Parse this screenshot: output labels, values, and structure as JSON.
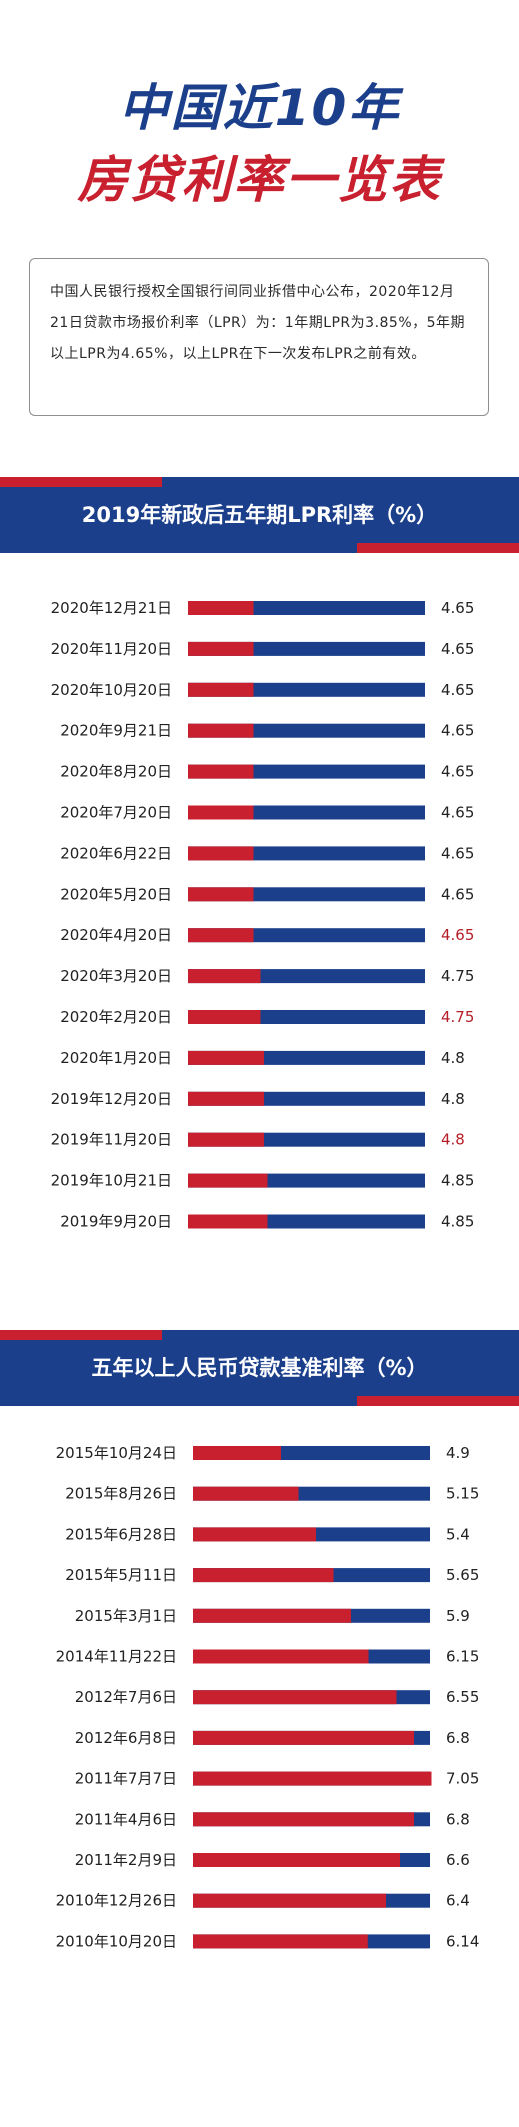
{
  "header": {
    "title_line1": "中国近10年",
    "title_line2": "房贷利率一览表"
  },
  "intro": {
    "text": "中国人民银行授权全国银行间同业拆借中心公布，2020年12月21日贷款市场报价利率（LPR）为：1年期LPR为3.85%，5年期以上LPR为4.65%，以上LPR在下一次发布LPR之前有效。"
  },
  "colors": {
    "blue": "#1b3f8b",
    "red": "#c8202e",
    "highlight_text": "#b51e27"
  },
  "chart_data": [
    {
      "type": "bar",
      "title": "2019年新政后五年期LPR利率（%）",
      "orientation": "horizontal",
      "categories": [
        "2020年12月21日",
        "2020年11月20日",
        "2020年10月20日",
        "2020年9月21日",
        "2020年8月20日",
        "2020年7月20日",
        "2020年6月22日",
        "2020年5月20日",
        "2020年4月20日",
        "2020年3月20日",
        "2020年2月20日",
        "2020年1月20日",
        "2019年12月20日",
        "2019年11月20日",
        "2019年10月21日",
        "2019年9月20日"
      ],
      "values": [
        4.65,
        4.65,
        4.65,
        4.65,
        4.65,
        4.65,
        4.65,
        4.65,
        4.65,
        4.75,
        4.75,
        4.8,
        4.8,
        4.8,
        4.85,
        4.85
      ],
      "value_labels": [
        "4.65",
        "4.65",
        "4.65",
        "4.65",
        "4.65",
        "4.65",
        "4.65",
        "4.65",
        "4.65",
        "4.75",
        "4.75",
        "4.8",
        "4.8",
        "4.8",
        "4.85",
        "4.85"
      ],
      "highlighted": [
        8,
        10,
        13
      ]
    },
    {
      "type": "bar",
      "title": "五年以上人民币贷款基准利率（%）",
      "orientation": "horizontal",
      "categories": [
        "2015年10月24日",
        "2015年8月26日",
        "2015年6月28日",
        "2015年5月11日",
        "2015年3月1日",
        "2014年11月22日",
        "2012年7月6日",
        "2012年6月8日",
        "2011年7月7日",
        "2011年4月6日",
        "2011年2月9日",
        "2010年12月26日",
        "2010年10月20日"
      ],
      "values": [
        4.9,
        5.15,
        5.4,
        5.65,
        5.9,
        6.15,
        6.55,
        6.8,
        7.05,
        6.8,
        6.6,
        6.4,
        6.14
      ],
      "value_labels": [
        "4.9",
        "5.15",
        "5.4",
        "5.65",
        "5.9",
        "6.15",
        "6.55",
        "6.8",
        "7.05",
        "6.8",
        "6.6",
        "6.4",
        "6.14"
      ],
      "highlighted": []
    }
  ]
}
